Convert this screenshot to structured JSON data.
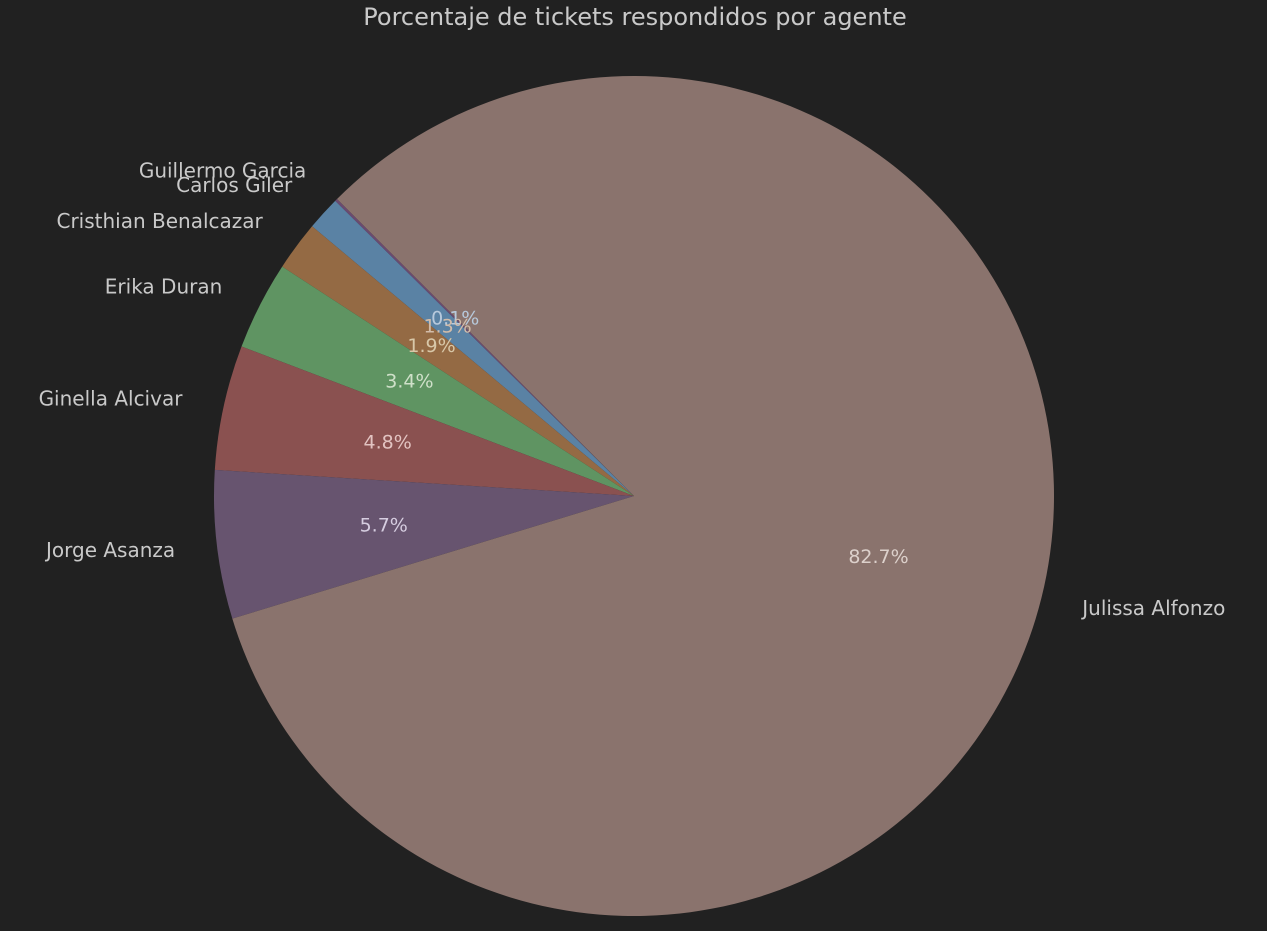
{
  "chart_data": {
    "type": "pie",
    "title": "Porcentaje de tickets respondidos por agente",
    "start_angle_deg": 135,
    "direction": "counterclockwise",
    "background": "#212121",
    "slices": [
      {
        "label": "Guillermo  Garcia",
        "value": 0.1,
        "pct_text": "0.1%",
        "color": "#6a4a70",
        "pct_color": "#b7c9dc"
      },
      {
        "label": "Carlos Giler",
        "value": 1.3,
        "pct_text": "1.3%",
        "color": "#5a82a4",
        "pct_color": "#d2bcaa"
      },
      {
        "label": "Cristhian Benalcazar",
        "value": 1.9,
        "pct_text": "1.9%",
        "color": "#946a44",
        "pct_color": "#d8c7a8"
      },
      {
        "label": "Erika Duran",
        "value": 3.4,
        "pct_text": "3.4%",
        "color": "#5f9462",
        "pct_color": "#cfe0c9"
      },
      {
        "label": "Ginella Alcivar",
        "value": 4.8,
        "pct_text": "4.8%",
        "color": "#8a5150",
        "pct_color": "#e2c3c1"
      },
      {
        "label": "Jorge Asanza",
        "value": 5.7,
        "pct_text": "5.7%",
        "color": "#67546f",
        "pct_color": "#d6cde0"
      },
      {
        "label": "Julissa Alfonzo",
        "value": 82.7,
        "pct_text": "82.7%",
        "color": "#8a736d",
        "pct_color": "#dcd0cb"
      }
    ]
  }
}
